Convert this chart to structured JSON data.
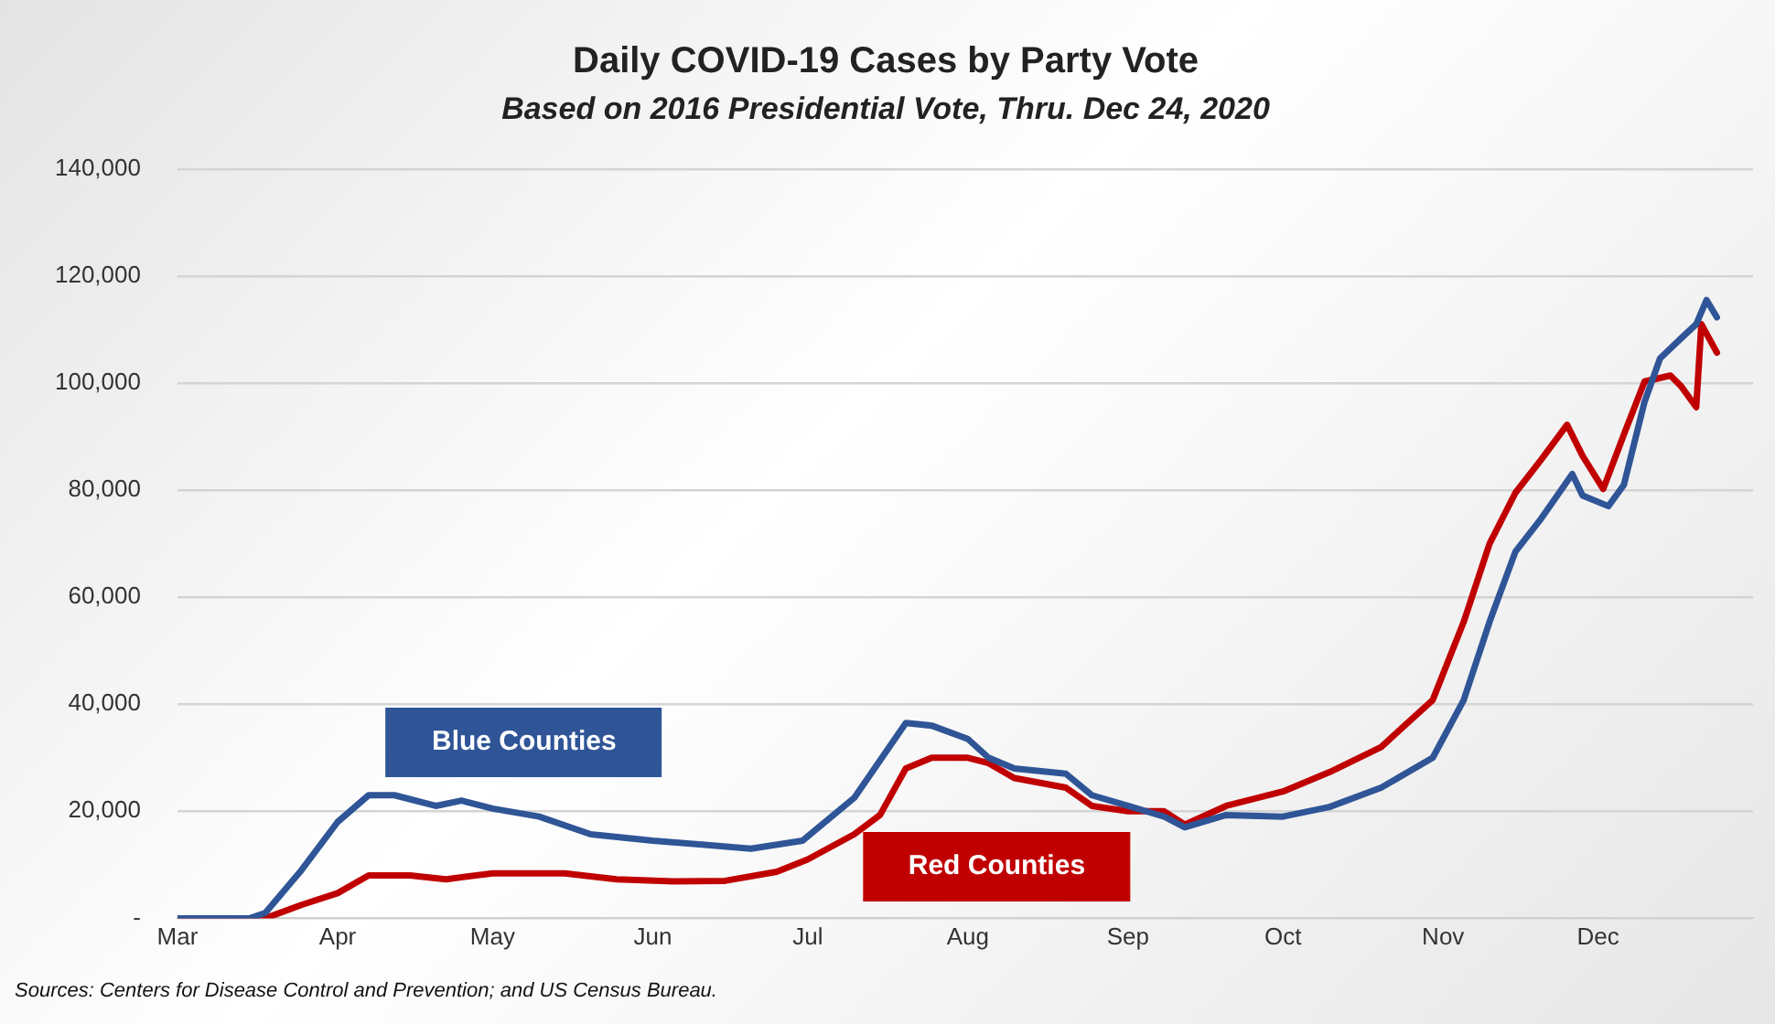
{
  "chart_data": {
    "type": "line",
    "title": "Daily COVID-19 Cases by Party Vote",
    "subtitle": "Based on 2016 Presidential Vote, Thru. Dec 24, 2020",
    "annotations": [
      "Sources: Centers for Disease Control and Prevention; and US Census Bureau."
    ],
    "xlim": [
      "2020-03-01",
      "2020-12-31"
    ],
    "xticks": [
      {
        "value": "2020-03-01",
        "label": "Mar"
      },
      {
        "value": "2020-04-01",
        "label": "Apr"
      },
      {
        "value": "2020-05-01",
        "label": "May"
      },
      {
        "value": "2020-06-01",
        "label": "Jun"
      },
      {
        "value": "2020-07-01",
        "label": "Jul"
      },
      {
        "value": "2020-08-01",
        "label": "Aug"
      },
      {
        "value": "2020-09-01",
        "label": "Sep"
      },
      {
        "value": "2020-10-01",
        "label": "Oct"
      },
      {
        "value": "2020-11-01",
        "label": "Nov"
      },
      {
        "value": "2020-12-01",
        "label": "Dec"
      }
    ],
    "ylim": [
      0,
      140000
    ],
    "yticks": [
      {
        "value": 0,
        "label": "-"
      },
      {
        "value": 20000,
        "label": "20,000"
      },
      {
        "value": 40000,
        "label": "40,000"
      },
      {
        "value": 60000,
        "label": "60,000"
      },
      {
        "value": 80000,
        "label": "80,000"
      },
      {
        "value": 100000,
        "label": "100,000"
      },
      {
        "value": 120000,
        "label": "120,000"
      },
      {
        "value": 140000,
        "label": "140,000"
      }
    ],
    "grid": "y",
    "legend": false,
    "marker": "none",
    "line_style": "solid",
    "series": [
      {
        "name": "Blue Counties",
        "color": "#2f5597",
        "x": [
          "2020-03-01",
          "2020-03-15",
          "2020-03-18",
          "2020-03-25",
          "2020-04-01",
          "2020-04-07",
          "2020-04-12",
          "2020-04-20",
          "2020-04-25",
          "2020-05-01",
          "2020-05-10",
          "2020-05-20",
          "2020-06-01",
          "2020-06-10",
          "2020-06-20",
          "2020-06-30",
          "2020-07-10",
          "2020-07-20",
          "2020-07-25",
          "2020-08-01",
          "2020-08-05",
          "2020-08-10",
          "2020-08-20",
          "2020-08-25",
          "2020-09-01",
          "2020-09-08",
          "2020-09-12",
          "2020-09-20",
          "2020-10-01",
          "2020-10-10",
          "2020-10-20",
          "2020-10-30",
          "2020-11-05",
          "2020-11-10",
          "2020-11-15",
          "2020-11-20",
          "2020-11-26",
          "2020-11-28",
          "2020-12-03",
          "2020-12-06",
          "2020-12-10",
          "2020-12-13",
          "2020-12-17",
          "2020-12-20",
          "2020-12-22",
          "2020-12-24"
        ],
        "values": [
          0,
          0,
          1000,
          9000,
          18000,
          23000,
          23000,
          21000,
          22000,
          20500,
          19000,
          15700,
          14500,
          13800,
          13000,
          14500,
          22500,
          36500,
          36000,
          33500,
          30000,
          28000,
          27000,
          23000,
          21000,
          19000,
          17000,
          19300,
          19000,
          20800,
          24400,
          30000,
          40800,
          55400,
          68500,
          74700,
          83000,
          79000,
          77000,
          81000,
          96500,
          104600,
          108300,
          111000,
          115500,
          112300
        ]
      },
      {
        "name": "Red Counties",
        "color": "#c00000",
        "x": [
          "2020-03-01",
          "2020-03-18",
          "2020-03-25",
          "2020-04-01",
          "2020-04-07",
          "2020-04-15",
          "2020-04-22",
          "2020-05-01",
          "2020-05-15",
          "2020-05-25",
          "2020-06-05",
          "2020-06-15",
          "2020-06-25",
          "2020-07-01",
          "2020-07-10",
          "2020-07-15",
          "2020-07-20",
          "2020-07-25",
          "2020-08-01",
          "2020-08-05",
          "2020-08-10",
          "2020-08-20",
          "2020-08-25",
          "2020-09-01",
          "2020-09-08",
          "2020-09-12",
          "2020-09-20",
          "2020-10-01",
          "2020-10-10",
          "2020-10-20",
          "2020-10-30",
          "2020-11-05",
          "2020-11-10",
          "2020-11-15",
          "2020-11-20",
          "2020-11-25",
          "2020-11-28",
          "2020-12-02",
          "2020-12-06",
          "2020-12-10",
          "2020-12-15",
          "2020-12-17",
          "2020-12-20",
          "2020-12-21",
          "2020-12-24"
        ],
        "values": [
          0,
          0,
          2500,
          4700,
          8000,
          8000,
          7300,
          8400,
          8400,
          7300,
          6900,
          7000,
          8700,
          11000,
          15700,
          19300,
          28000,
          30000,
          30000,
          29000,
          26200,
          24400,
          21000,
          20000,
          20000,
          17500,
          21000,
          23700,
          27300,
          32000,
          40800,
          55400,
          70000,
          79500,
          85700,
          92200,
          86400,
          80200,
          90400,
          100300,
          101400,
          99500,
          95500,
          111000,
          105700
        ]
      }
    ]
  }
}
